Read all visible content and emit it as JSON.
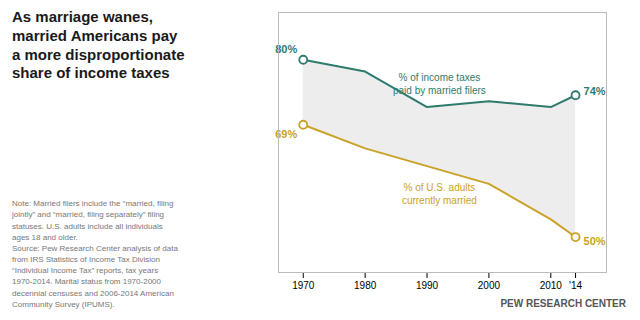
{
  "chart_data": {
    "type": "line",
    "title": "As marriage wanes,\nmarried Americans pay\na more disproportionate\nshare of income taxes",
    "note": "Note: Married filers include the “married, filing\njointly” and “married, filing separately” filing\nstatuses. U.S. adults include all individuals\nages 18 and older.\nSource: Pew Research Center analysis of data\nfrom IRS Statistics of Income Tax Division\n“Individual Income Tax” reports, tax years\n1970-2014. Marital status from 1970-2000\ndecennial censuses and 2006-2014 American\nCommunity Survey (IPUMS).",
    "source": "PEW RESEARCH CENTER",
    "x": [
      1970,
      1980,
      1990,
      2000,
      2010,
      2014
    ],
    "series": [
      {
        "name": "% of income taxes\npaid by married filers",
        "color": "#2e7b6e",
        "values": [
          80,
          78,
          72,
          73,
          72,
          74
        ],
        "value_labels": [
          "80%",
          null,
          null,
          null,
          null,
          "74%"
        ]
      },
      {
        "name": "% of U.S. adults\ncurrently married",
        "color": "#c9a227",
        "values": [
          69,
          65,
          62,
          59,
          53,
          50
        ],
        "value_labels": [
          "69%",
          null,
          null,
          null,
          null,
          "50%"
        ]
      }
    ],
    "xlim": [
      1966,
      2019
    ],
    "xticks": [
      1970,
      1980,
      1990,
      2000,
      2010,
      {
        "value": 2014,
        "label": "'14"
      }
    ],
    "ylim": [
      44,
      88
    ],
    "tick_labels": "x",
    "grid": false,
    "data_labels": true
  }
}
